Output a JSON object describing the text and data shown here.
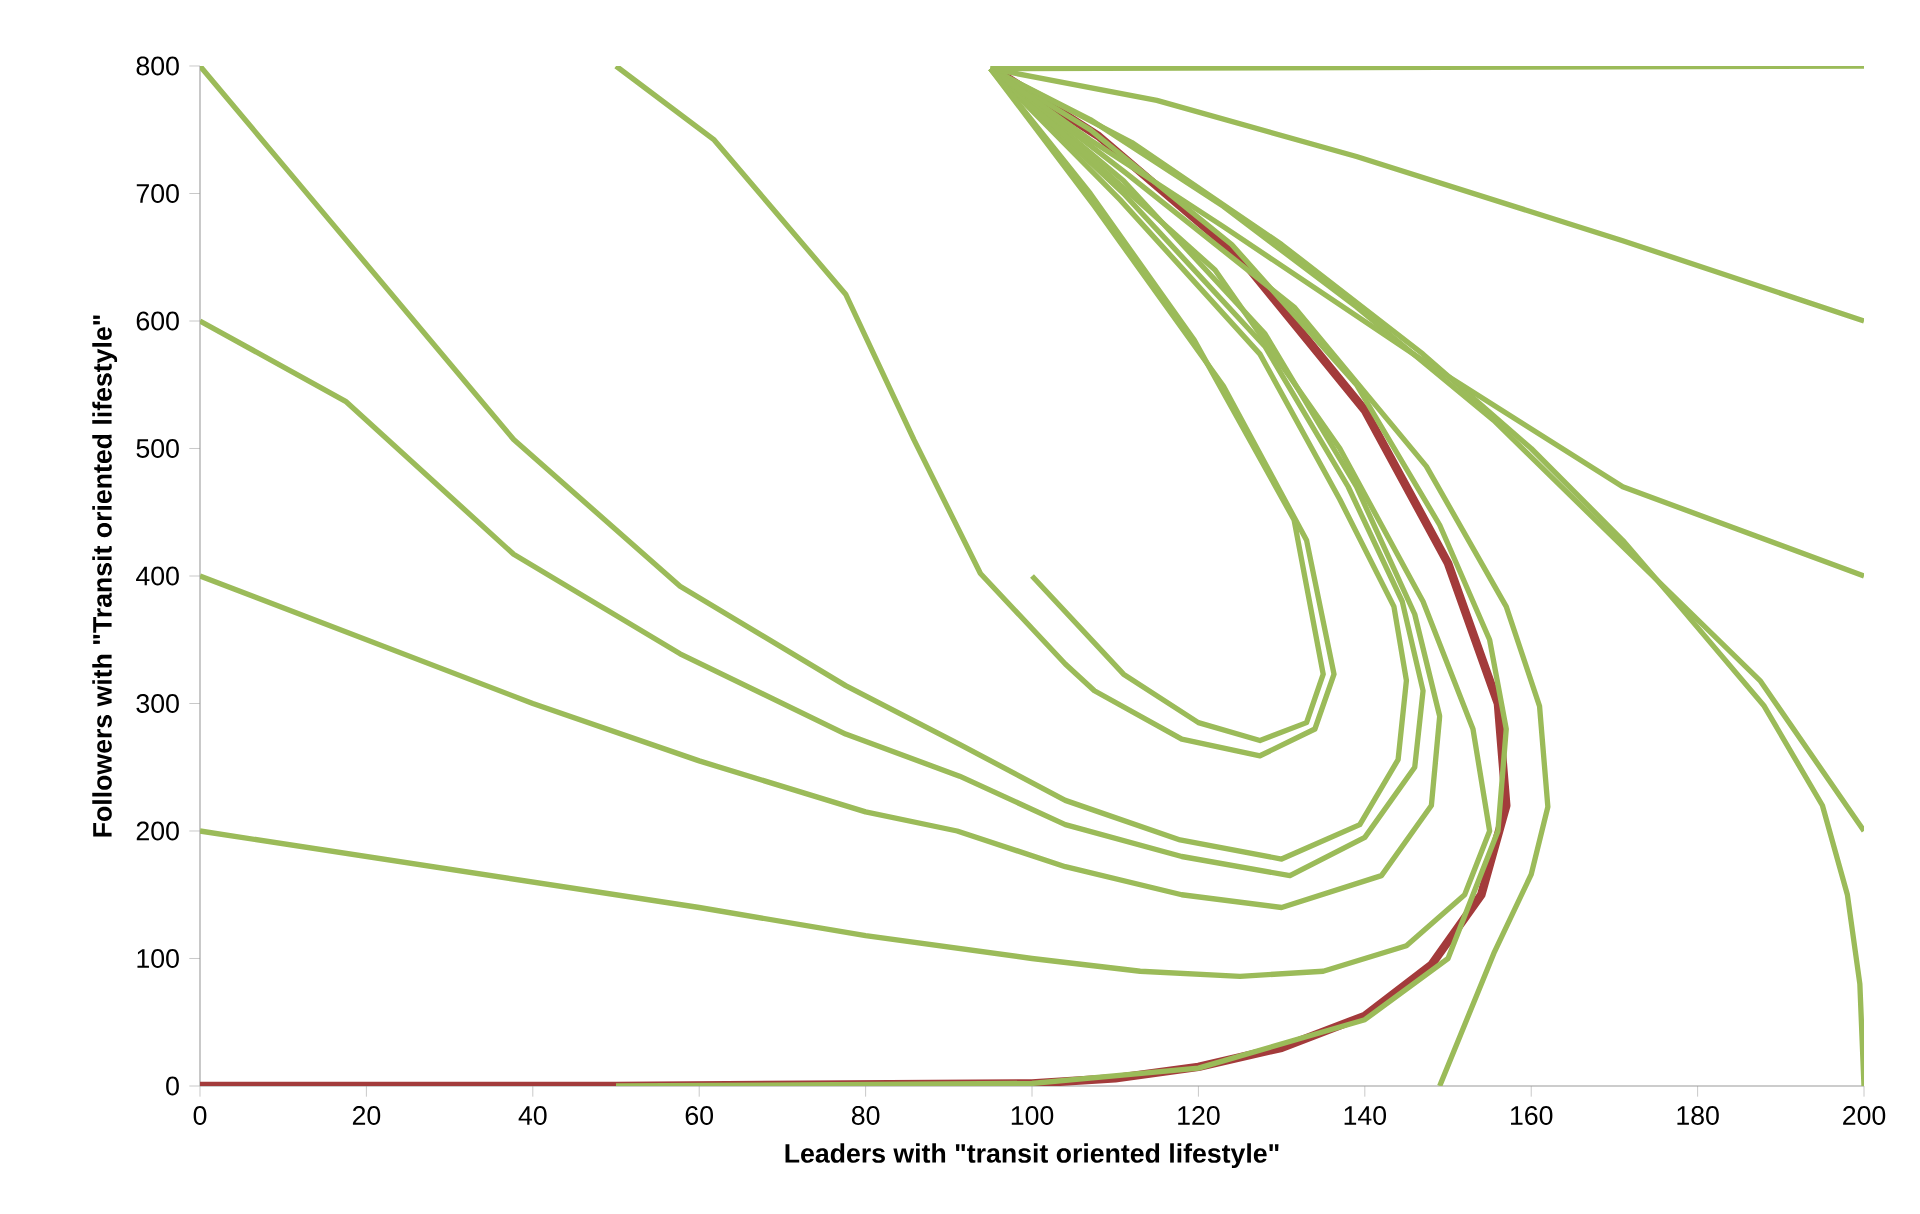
{
  "chart_data": {
    "type": "line",
    "xlabel": "Leaders with \"transit oriented lifestyle\"",
    "ylabel": "Followers with \"Transit oriented lifestyle\"",
    "xlim": [
      0,
      200
    ],
    "ylim": [
      0,
      800
    ],
    "xticks": [
      0,
      20,
      40,
      60,
      80,
      100,
      120,
      140,
      160,
      180,
      200
    ],
    "yticks": [
      0,
      100,
      200,
      300,
      400,
      500,
      600,
      700,
      800
    ],
    "marker": "none",
    "line_style": "solid",
    "series": [
      {
        "color": "#a33b3b",
        "x": [
          0,
          50,
          100,
          110,
          120,
          130,
          140,
          148,
          154,
          157,
          156,
          150,
          140,
          125,
          108,
          96
        ],
        "values": [
          0,
          0,
          2,
          6,
          15,
          30,
          55,
          95,
          150,
          220,
          300,
          410,
          530,
          650,
          745,
          795
        ]
      },
      {
        "color": "#9bbb59",
        "x": [
          0,
          17.5,
          37.7,
          57.7,
          77.6,
          91.3,
          104,
          117.8,
          130,
          139.4,
          144,
          145,
          143.5,
          137,
          127.4,
          110.6,
          95
        ],
        "values": [
          800,
          664,
          507,
          392,
          314,
          268,
          224,
          193,
          178,
          205,
          256,
          318,
          376,
          460,
          574,
          695,
          798
        ]
      },
      {
        "color": "#9bbb59",
        "x": [
          0,
          17.5,
          37.7,
          57.7,
          77.6,
          91.3,
          104,
          118,
          131,
          140,
          146,
          147,
          144.5,
          138,
          128,
          111,
          95
        ],
        "values": [
          600,
          537,
          417,
          339,
          276,
          243,
          205,
          180,
          165,
          195,
          250,
          310,
          380,
          470,
          580,
          700,
          798
        ]
      },
      {
        "color": "#9bbb59",
        "x": [
          0,
          20,
          40,
          60,
          80,
          91,
          104,
          118,
          130,
          142,
          148,
          149,
          146,
          139,
          128,
          111,
          95
        ],
        "values": [
          400,
          350,
          300,
          255,
          215,
          200,
          172,
          150,
          140,
          165,
          220,
          290,
          370,
          470,
          590,
          710,
          798
        ]
      },
      {
        "color": "#9bbb59",
        "x": [
          0,
          20,
          40,
          60,
          80,
          100,
          113,
          125,
          135,
          145,
          152,
          155,
          153,
          147,
          137,
          122,
          95
        ],
        "values": [
          200,
          180,
          160,
          140,
          118,
          100,
          90,
          86,
          90,
          110,
          150,
          200,
          280,
          380,
          500,
          640,
          798
        ]
      },
      {
        "color": "#9bbb59",
        "x": [
          50,
          100,
          120,
          140,
          150,
          156,
          157,
          155,
          149,
          139,
          124,
          107,
          95
        ],
        "values": [
          0,
          2,
          14,
          52,
          100,
          200,
          280,
          350,
          440,
          550,
          660,
          750,
          798
        ]
      },
      {
        "color": "#9bbb59",
        "x": [
          149,
          155.5,
          160,
          162,
          161,
          157,
          147.4,
          131.5,
          111.3,
          95
        ],
        "values": [
          0,
          104,
          166,
          219,
          298,
          376,
          486,
          611,
          716,
          798
        ]
      },
      {
        "color": "#9bbb59",
        "x": [
          200,
          199.5,
          198,
          195,
          188,
          178,
          171,
          160,
          147,
          130,
          112,
          95
        ],
        "values": [
          0,
          80,
          150,
          220,
          298,
          375,
          428,
          500,
          574,
          660,
          740,
          798
        ]
      },
      {
        "color": "#9bbb59",
        "x": [
          200,
          187.5,
          171,
          155.5,
          139,
          123,
          107,
          95
        ],
        "values": [
          200,
          318,
          423,
          522,
          611,
          690,
          758,
          798
        ]
      },
      {
        "color": "#9bbb59",
        "x": [
          200,
          171,
          147,
          123,
          107,
          95
        ],
        "values": [
          400,
          470,
          569,
          674,
          742,
          798
        ]
      },
      {
        "color": "#9bbb59",
        "x": [
          200,
          171,
          139,
          115,
          95
        ],
        "values": [
          600,
          663,
          729,
          773,
          798
        ]
      },
      {
        "color": "#9bbb59",
        "x": [
          200,
          95
        ],
        "values": [
          800,
          798
        ]
      },
      {
        "color": "#9bbb59",
        "x": [
          50,
          61.8,
          77.6,
          85.8,
          93.8,
          104,
          107.5,
          118,
          127.4,
          134,
          136.3,
          133,
          123,
          107.5,
          95
        ],
        "values": [
          800,
          742,
          621,
          507,
          402,
          331,
          310,
          272,
          259,
          280,
          323,
          428,
          549,
          690,
          798
        ]
      },
      {
        "color": "#9bbb59",
        "x": [
          100,
          111,
          120,
          127.4,
          133,
          135,
          131.5,
          119.5,
          107,
          95
        ],
        "values": [
          400,
          323,
          285,
          271,
          285,
          323,
          444,
          585,
          700,
          798
        ]
      }
    ]
  }
}
